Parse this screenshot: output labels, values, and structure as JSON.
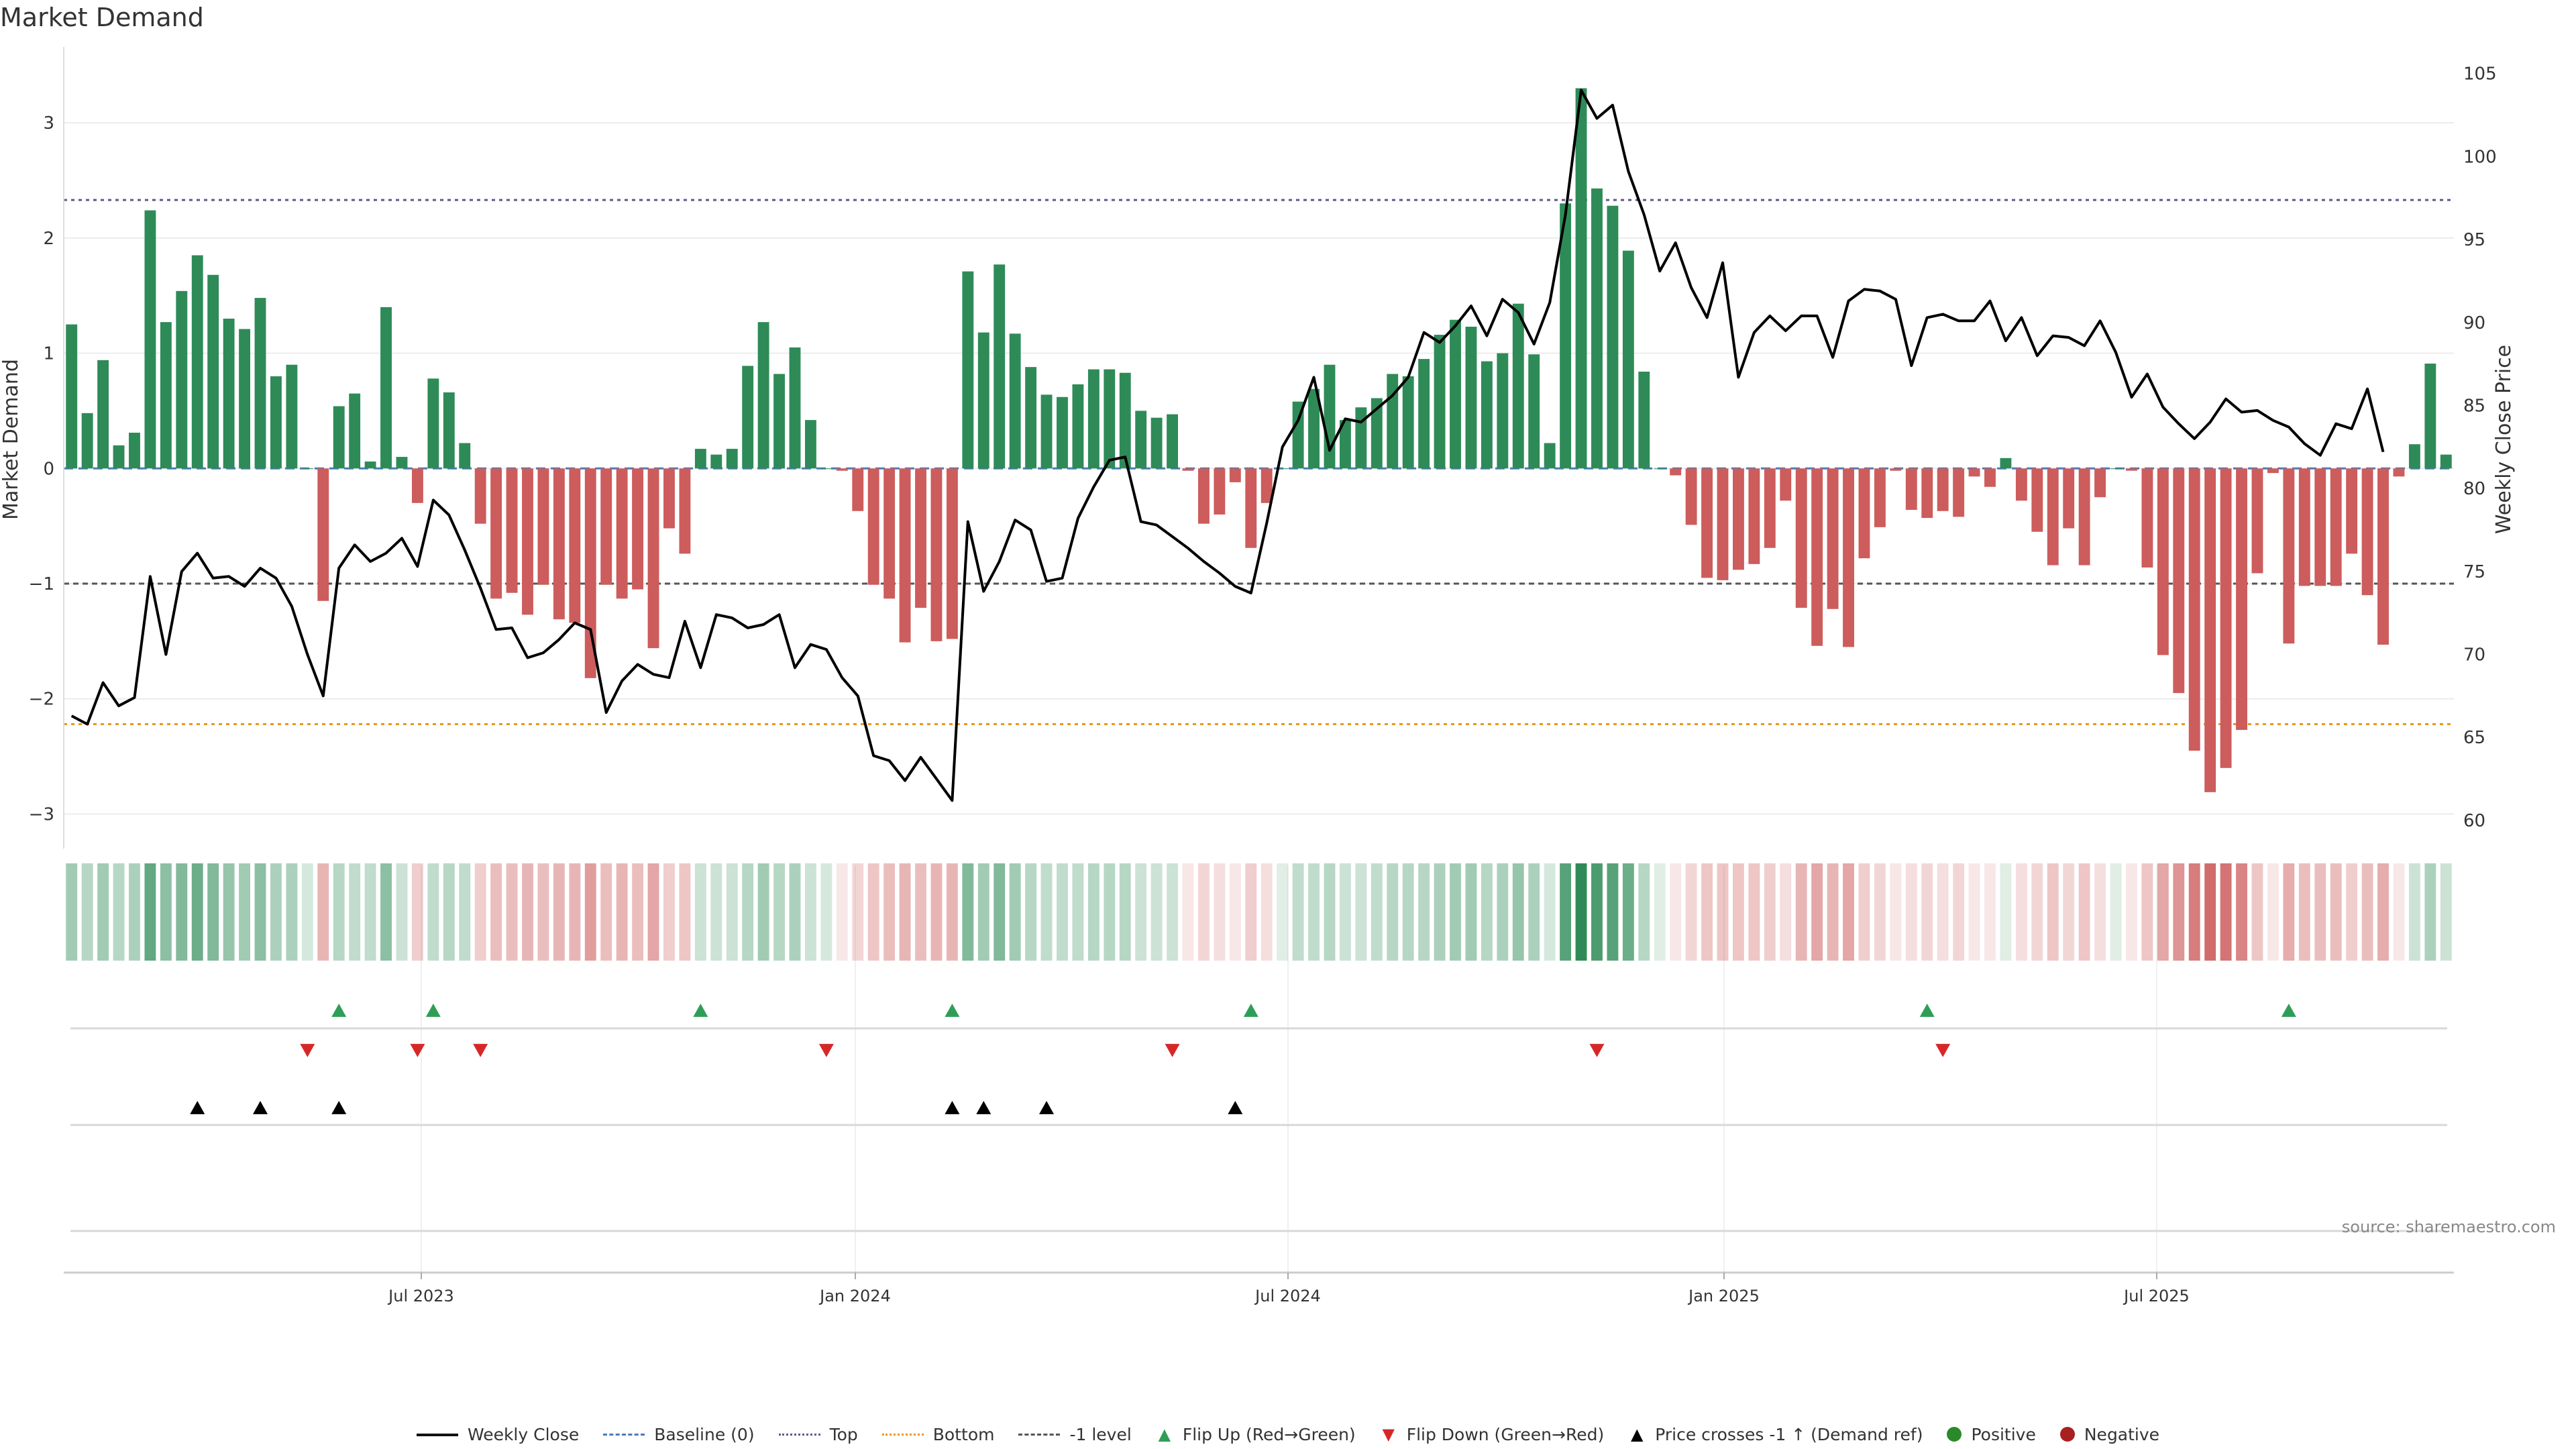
{
  "title": "Market Demand",
  "source_note": "source: sharemaestro.com",
  "legend": [
    {
      "label": "Weekly Close",
      "kind": "sw-solid",
      "icon": "solid-line-icon"
    },
    {
      "label": "Baseline (0)",
      "kind": "sw-dash",
      "icon": "dashed-line-icon"
    },
    {
      "label": "Top",
      "kind": "sw-dot-top",
      "icon": "dotted-line-icon"
    },
    {
      "label": "Bottom",
      "kind": "sw-dot-bottom",
      "icon": "dotted-line-icon"
    },
    {
      "label": "-1 level",
      "kind": "sw-dash-neg",
      "icon": "dashed-line-icon"
    },
    {
      "label": "Flip Up (Red→Green)",
      "kind": "mk-up",
      "icon": "triangle-up-icon"
    },
    {
      "label": "Flip Down (Green→Red)",
      "kind": "mk-down",
      "icon": "triangle-down-icon"
    },
    {
      "label": "Price crosses -1 ↑ (Demand ref)",
      "kind": "mk-cross",
      "icon": "triangle-up-icon"
    },
    {
      "label": "Positive",
      "kind": "circle",
      "color": "#2a8a2a",
      "icon": "circle-icon"
    },
    {
      "label": "Negative",
      "kind": "circle",
      "color": "#a82020",
      "icon": "circle-icon"
    }
  ],
  "chart_data": {
    "type": "bar",
    "ylabel": "Market Demand",
    "y2label": "Weekly Close Price",
    "ylim": [
      -3.3,
      3.6
    ],
    "y2lim": [
      58.3,
      106.2
    ],
    "yticks": [
      3,
      2,
      1,
      0,
      -1,
      -2,
      -3
    ],
    "y2ticks": [
      105,
      100,
      95,
      90,
      85,
      80,
      75,
      70,
      65,
      60
    ],
    "xticks": [
      "Jul 2023",
      "Jan 2024",
      "Jul 2024",
      "Jan 2025",
      "Jul 2025"
    ],
    "top_level": 2.33,
    "bottom_level": -2.22,
    "neg_level": -1,
    "colors": {
      "positive": "#2e8b57",
      "negative": "#cd5c5c",
      "price": "#000000",
      "top": "#5a5a8a",
      "bottom": "#e69a1c",
      "flip_up": "#2e9e57",
      "flip_down": "#d62728",
      "cross": "#000000",
      "baseline": "#4a7bb7"
    },
    "demand": [
      1.25,
      0.48,
      0.94,
      0.2,
      0.31,
      2.24,
      1.27,
      1.54,
      1.85,
      1.68,
      1.3,
      1.21,
      1.48,
      0.8,
      0.9,
      0,
      -1.15,
      0.54,
      0.65,
      0.06,
      1.4,
      0.1,
      -0.3,
      0.78,
      0.66,
      0.22,
      -0.48,
      -1.13,
      -1.08,
      -1.27,
      -1.01,
      -1.31,
      -1.34,
      -1.82,
      -1.01,
      -1.13,
      -1.05,
      -1.56,
      -0.52,
      -0.74,
      0.17,
      0.12,
      0.17,
      0.89,
      1.27,
      0.82,
      1.05,
      0.42,
      0,
      -0.02,
      -0.37,
      -1.01,
      -1.13,
      -1.51,
      -1.21,
      -1.5,
      -1.48,
      1.71,
      1.18,
      1.77,
      1.17,
      0.88,
      0.64,
      0.62,
      0.73,
      0.86,
      0.86,
      0.83,
      0.5,
      0.44,
      0.47,
      -0.02,
      -0.48,
      -0.4,
      -0.12,
      -0.69,
      -0.3,
      0,
      0.58,
      0.69,
      0.9,
      0.42,
      0.53,
      0.61,
      0.82,
      0.8,
      0.95,
      1.16,
      1.29,
      1.23,
      0.93,
      1.0,
      1.43,
      0.99,
      0.22,
      2.3,
      3.3,
      2.43,
      2.28,
      1.89,
      0.84,
      0,
      -0.06,
      -0.49,
      -0.95,
      -0.97,
      -0.88,
      -0.83,
      -0.69,
      -0.28,
      -1.21,
      -1.54,
      -1.22,
      -1.55,
      -0.78,
      -0.51,
      -0.02,
      -0.36,
      -0.43,
      -0.37,
      -0.42,
      -0.07,
      -0.16,
      0.09,
      -0.28,
      -0.55,
      -0.84,
      -0.52,
      -0.84,
      -0.25,
      0,
      -0.02,
      -0.86,
      -1.62,
      -1.95,
      -2.45,
      -2.81,
      -2.6,
      -2.27,
      -0.91,
      -0.04,
      -1.52,
      -1.02,
      -1.02,
      -1.02,
      -0.74,
      -1.1,
      -1.53,
      -0.07,
      0.21,
      0.91,
      0.12
    ],
    "close": [
      66.3,
      65.8,
      68.3,
      66.9,
      67.4,
      74.7,
      70.0,
      75.0,
      76.1,
      74.6,
      74.7,
      74.1,
      75.2,
      74.6,
      72.9,
      70.0,
      67.5,
      75.2,
      76.6,
      75.6,
      76.1,
      77.0,
      75.3,
      79.3,
      78.4,
      76.3,
      74.0,
      71.5,
      71.6,
      69.8,
      70.1,
      70.9,
      71.9,
      71.5,
      66.5,
      68.4,
      69.4,
      68.8,
      68.6,
      72.0,
      69.2,
      72.4,
      72.2,
      71.6,
      71.8,
      72.4,
      69.2,
      70.6,
      70.3,
      68.6,
      67.5,
      63.9,
      63.6,
      62.4,
      63.8,
      62.5,
      61.2,
      78.0,
      73.8,
      75.6,
      78.1,
      77.5,
      74.4,
      74.6,
      78.2,
      80.1,
      81.7,
      81.9,
      78.0,
      77.8,
      77.1,
      76.4,
      75.6,
      74.9,
      74.1,
      73.7,
      77.9,
      82.5,
      84.1,
      86.7,
      82.3,
      84.2,
      84.0,
      84.8,
      85.6,
      86.7,
      89.4,
      88.8,
      89.8,
      91.0,
      89.2,
      91.4,
      90.6,
      88.7,
      91.2,
      96.5,
      104.0,
      102.3,
      103.1,
      99.1,
      96.5,
      93.1,
      94.8,
      92.1,
      90.3,
      93.6,
      86.7,
      89.4,
      90.4,
      89.5,
      90.4,
      90.4,
      87.9,
      91.3,
      92.0,
      91.9,
      91.4,
      87.4,
      90.3,
      90.5,
      90.1,
      90.1,
      91.3,
      88.9,
      90.3,
      88.0,
      89.2,
      89.1,
      88.6,
      90.1,
      88.2,
      85.5,
      86.9,
      84.9,
      83.9,
      83.0,
      84.0,
      85.4,
      84.6,
      84.7,
      84.1,
      83.7,
      82.7,
      82.0,
      83.9,
      83.6,
      86.0,
      82.2
    ],
    "heat_alpha": [
      0.45,
      0.35,
      0.45,
      0.35,
      0.4,
      0.75,
      0.55,
      0.6,
      0.7,
      0.6,
      0.5,
      0.45,
      0.55,
      0.4,
      0.4,
      0.2,
      0.45,
      0.35,
      0.3,
      0.3,
      0.55,
      0.25,
      0.3,
      0.3,
      0.35,
      0.3,
      0.3,
      0.4,
      0.4,
      0.45,
      0.4,
      0.45,
      0.45,
      0.6,
      0.4,
      0.45,
      0.4,
      0.55,
      0.3,
      0.35,
      0.25,
      0.25,
      0.25,
      0.35,
      0.45,
      0.35,
      0.4,
      0.25,
      0.2,
      0.15,
      0.25,
      0.35,
      0.4,
      0.45,
      0.4,
      0.45,
      0.45,
      0.6,
      0.45,
      0.6,
      0.45,
      0.35,
      0.3,
      0.3,
      0.3,
      0.35,
      0.35,
      0.35,
      0.25,
      0.25,
      0.25,
      0.15,
      0.25,
      0.2,
      0.15,
      0.3,
      0.2,
      0.15,
      0.3,
      0.3,
      0.35,
      0.25,
      0.25,
      0.3,
      0.35,
      0.35,
      0.35,
      0.4,
      0.45,
      0.45,
      0.35,
      0.4,
      0.5,
      0.4,
      0.2,
      0.8,
      1.0,
      0.85,
      0.8,
      0.7,
      0.35,
      0.15,
      0.15,
      0.25,
      0.35,
      0.35,
      0.35,
      0.35,
      0.3,
      0.2,
      0.45,
      0.55,
      0.45,
      0.55,
      0.3,
      0.25,
      0.15,
      0.2,
      0.25,
      0.2,
      0.25,
      0.15,
      0.15,
      0.15,
      0.2,
      0.25,
      0.35,
      0.25,
      0.35,
      0.2,
      0.15,
      0.15,
      0.35,
      0.55,
      0.65,
      0.8,
      0.9,
      0.85,
      0.75,
      0.35,
      0.15,
      0.5,
      0.4,
      0.4,
      0.4,
      0.3,
      0.4,
      0.5,
      0.15,
      0.25,
      0.4,
      0.25
    ],
    "flip_up": [
      17,
      23,
      40,
      56,
      75,
      118,
      141
    ],
    "flip_down": [
      15,
      22,
      26,
      48,
      70,
      97,
      119
    ],
    "cross_up": [
      8,
      12,
      17,
      56,
      58,
      62,
      74
    ]
  }
}
